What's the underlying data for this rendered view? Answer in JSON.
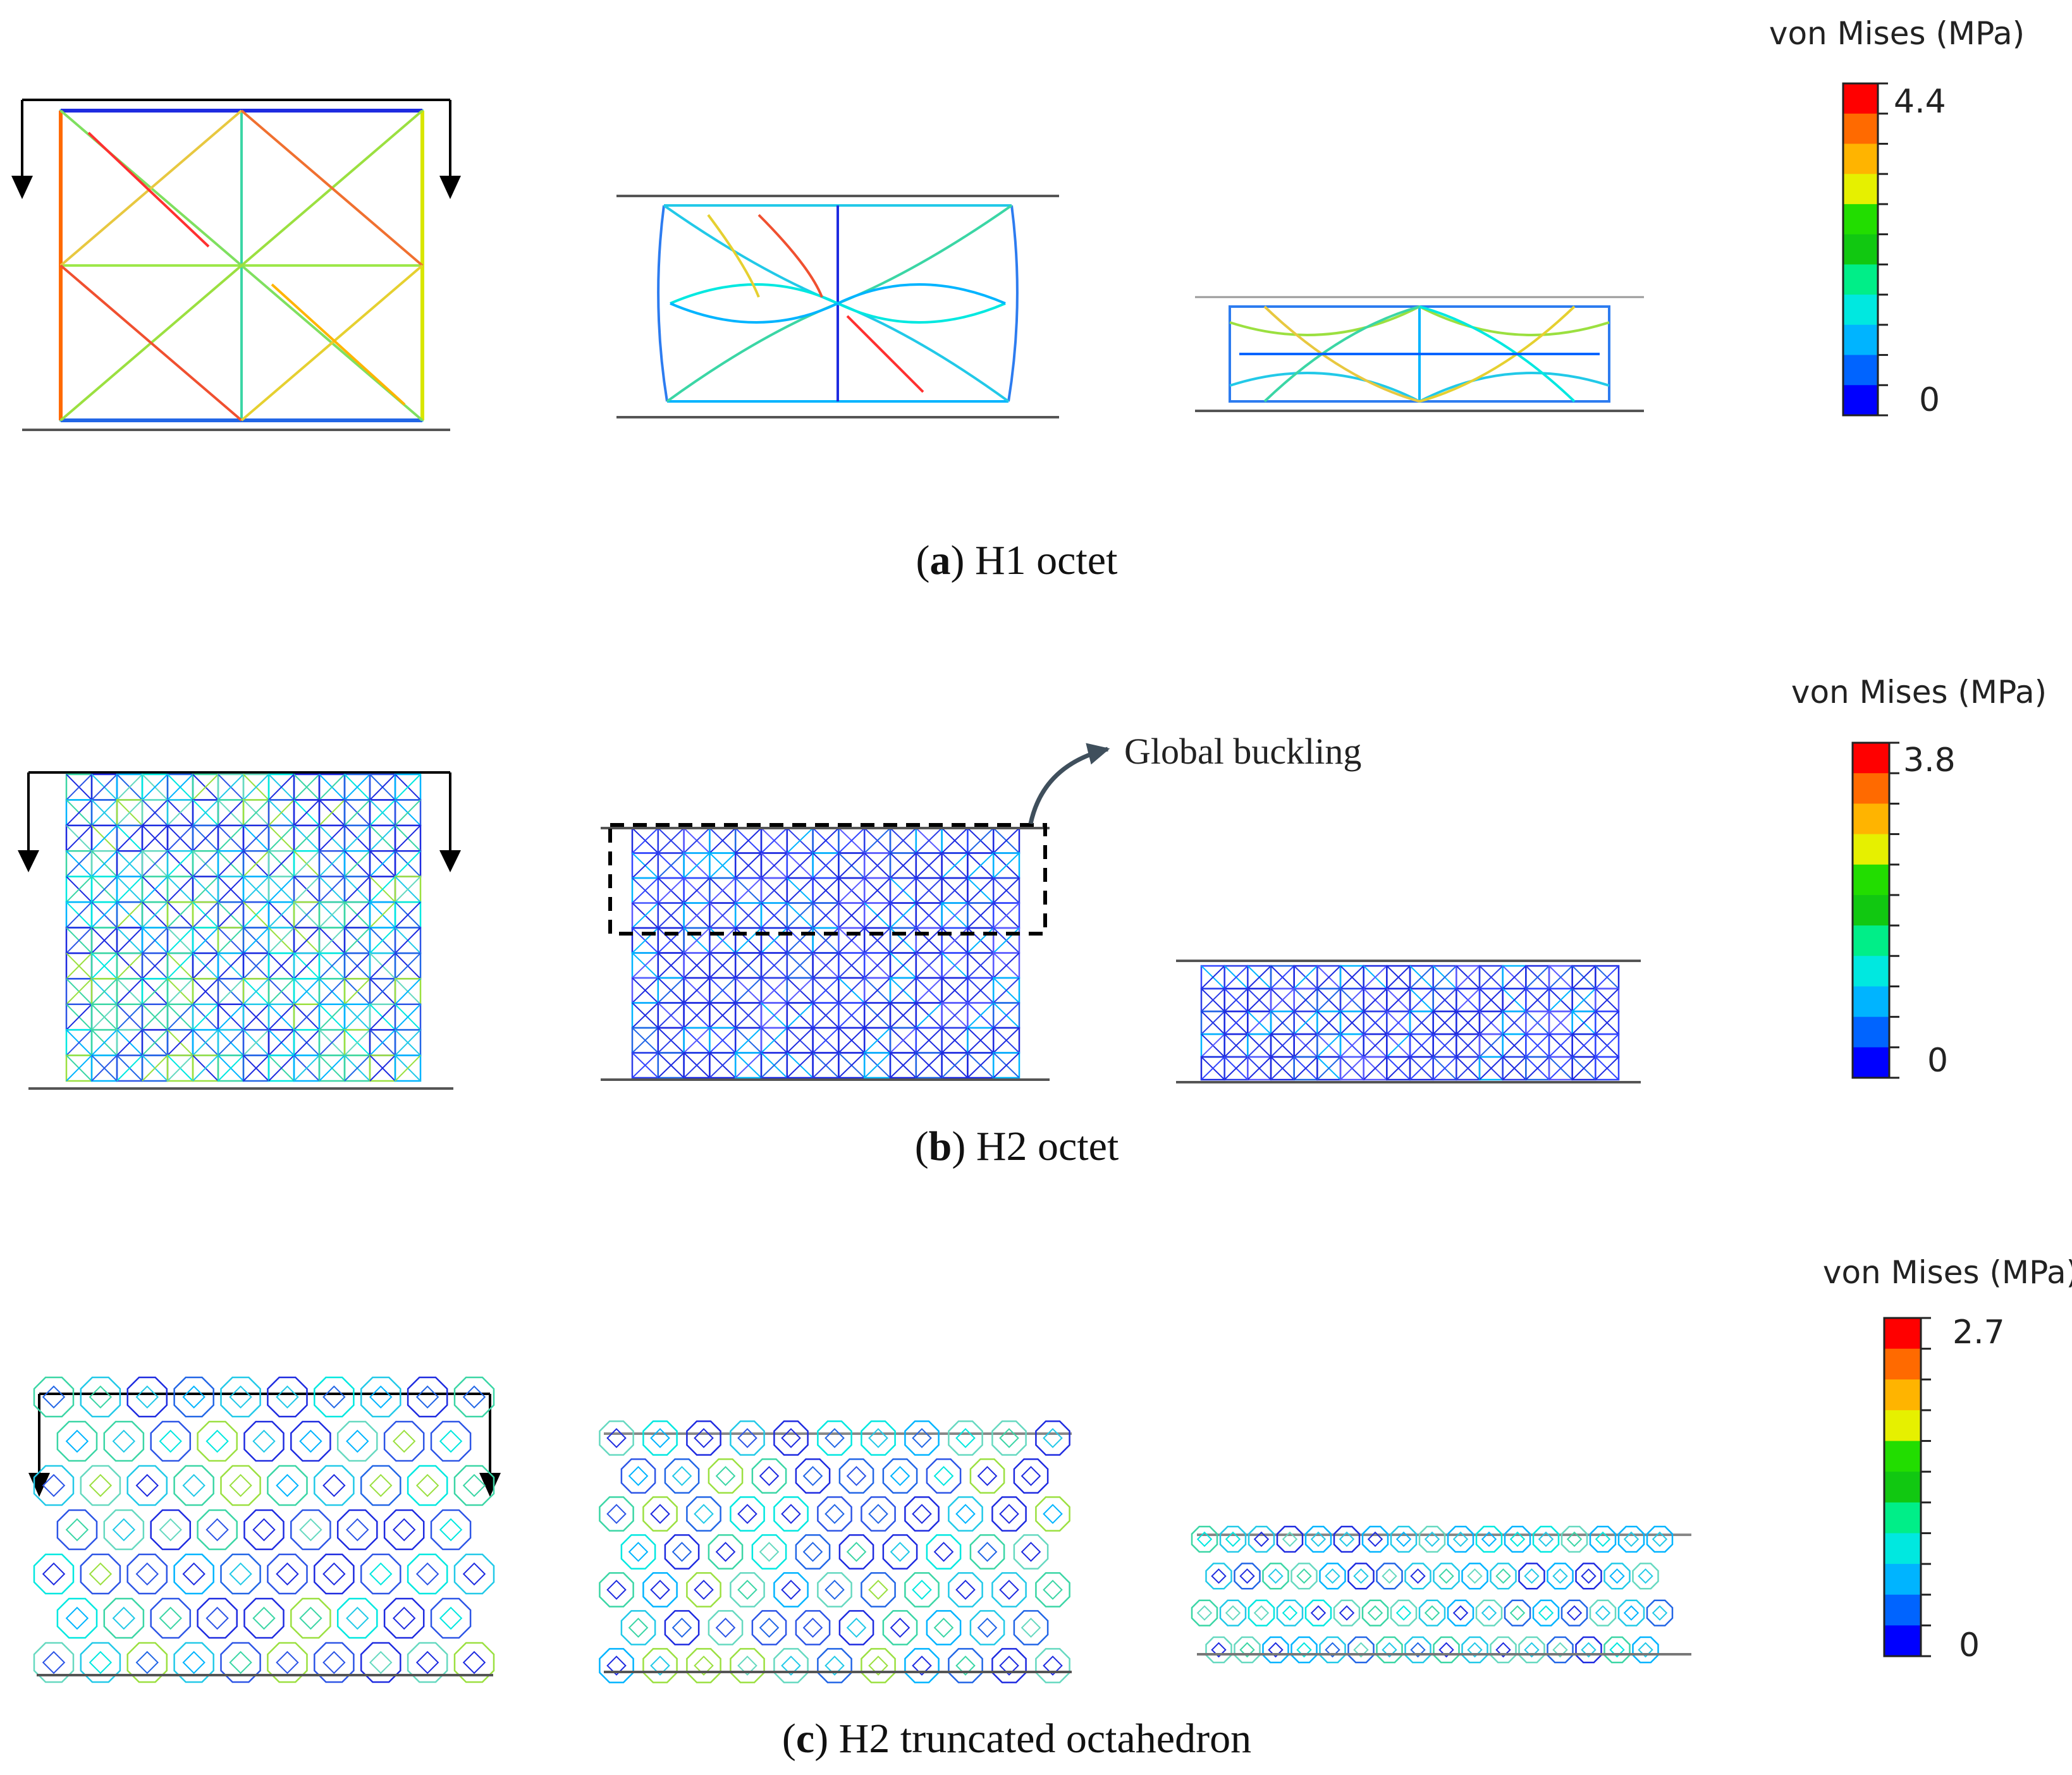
{
  "panels": [
    {
      "id": "a",
      "caption_letter": "a",
      "caption_text": "H1 octet",
      "colorbar": {
        "title": "von Mises (MPa)",
        "max_label": "4.4",
        "min_label": "0"
      }
    },
    {
      "id": "b",
      "caption_letter": "b",
      "caption_text": "H2 octet",
      "colorbar": {
        "title": "von Mises (MPa)",
        "max_label": "3.8",
        "min_label": "0"
      },
      "annotation": "Global buckling"
    },
    {
      "id": "c",
      "caption_letter": "c",
      "caption_text": "H2 truncated octahedron",
      "colorbar": {
        "title": "von Mises (MPa)",
        "max_label": "2.7",
        "min_label": "0"
      }
    }
  ],
  "colormap": [
    "#ff0000",
    "#ff6a00",
    "#ffb400",
    "#e6f000",
    "#22dd00",
    "#11c811",
    "#00ee88",
    "#00e8e0",
    "#00b4ff",
    "#0064ff",
    "#0000ff"
  ],
  "colors": {
    "stress_low": "#1e2be0",
    "stress_mid": "#22c9e8",
    "stress_high": "#ff2a2a",
    "plate": "#555555",
    "arrow": "#000000"
  }
}
